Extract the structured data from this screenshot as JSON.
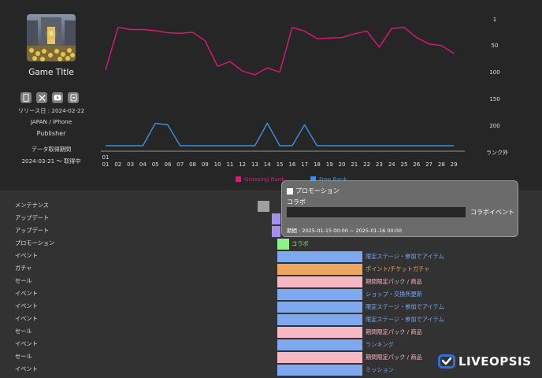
{
  "game": {
    "title": "Game TItle",
    "release": "リリース日 : 2024-02-22",
    "region": "JAPAN / iPhone",
    "publisher": "Publisher",
    "period_label": "データ取得期間",
    "period_value": "2024-03-21 〜 取得中",
    "store_icons": [
      "iphone-icon",
      "x-icon",
      "youtube-icon",
      "android-icon"
    ]
  },
  "chart_data": {
    "type": "line",
    "x_label_first": "01\n01",
    "x": [
      "01",
      "02",
      "03",
      "04",
      "05",
      "06",
      "07",
      "08",
      "09",
      "10",
      "11",
      "12",
      "13",
      "14",
      "15",
      "16",
      "17",
      "18",
      "19",
      "20",
      "21",
      "22",
      "23",
      "24",
      "25",
      "26",
      "27",
      "28",
      "29"
    ],
    "y_ticks": [
      "1",
      "50",
      "100",
      "150",
      "200",
      "ランク外"
    ],
    "series": [
      {
        "name": "Grossing Rank",
        "color": "#e0177a",
        "values": [
          97,
          17,
          21,
          21,
          23,
          27,
          28,
          26,
          42,
          90,
          81,
          99,
          106,
          93,
          101,
          17,
          24,
          38,
          37,
          36,
          29,
          24,
          54,
          19,
          17,
          36,
          48,
          51,
          66
        ]
      },
      {
        "name": "Free Rank",
        "color": "#3f8fe0",
        "values": [
          "ランク外",
          "ランク外",
          "ランク外",
          "ランク外",
          197,
          200,
          "ランク外",
          "ランク外",
          "ランク外",
          "ランク外",
          "ランク外",
          "ランク外",
          "ランク外",
          197,
          "ランク外",
          "ランク外",
          200,
          "ランク外",
          "ランク外",
          "ランク外",
          "ランク外",
          "ランク外",
          "ランク外",
          "ランク外",
          "ランク外",
          "ランク外",
          "ランク外",
          "ランク外",
          "ランク外"
        ]
      }
    ]
  },
  "legend": {
    "grossing": "Grossing Rank",
    "free": "Free Rank"
  },
  "events": [
    {
      "type": "メンテナンス",
      "label": "",
      "color": "#a0a0a0"
    },
    {
      "type": "アップデート",
      "label": "",
      "color": "#a58ef0"
    },
    {
      "type": "アップデート",
      "label": "",
      "color": "#a58ef0"
    },
    {
      "type": "プロモーション",
      "label": "コラボ",
      "color": "#8ef08a",
      "text_color": "#8ef08a"
    },
    {
      "type": "イベント",
      "label": "限定ステージ・参加でアイテム",
      "color": "#7ea9ee",
      "text_color": "#7ea9ee"
    },
    {
      "type": "ガチャ",
      "label": "ポイント/チケットガチャ",
      "color": "#f0a55e",
      "text_color": "#f0a55e"
    },
    {
      "type": "セール",
      "label": "期間限定パック / 商品",
      "color": "#f6b8c4",
      "text_color": "#f6b8c4"
    },
    {
      "type": "イベント",
      "label": "ショップ・交換所更新",
      "color": "#7ea9ee",
      "text_color": "#7ea9ee"
    },
    {
      "type": "イベント",
      "label": "限定ステージ・参加でアイテム",
      "color": "#7ea9ee",
      "text_color": "#7ea9ee"
    },
    {
      "type": "イベント",
      "label": "限定ステージ・参加でアイテム",
      "color": "#7ea9ee",
      "text_color": "#7ea9ee"
    },
    {
      "type": "セール",
      "label": "期間限定パック / 商品",
      "color": "#f6b8c4",
      "text_color": "#f6b8c4"
    },
    {
      "type": "イベント",
      "label": "ランキング",
      "color": "#7ea9ee",
      "text_color": "#7ea9ee"
    },
    {
      "type": "セール",
      "label": "期間限定パック / 商品",
      "color": "#f6b8c4",
      "text_color": "#f6b8c4"
    },
    {
      "type": "イベント",
      "label": "ミッション",
      "color": "#7ea9ee",
      "text_color": "#7ea9ee"
    }
  ],
  "tooltip": {
    "title": "プロモーション",
    "subtitle": "コラボ",
    "bar_label": "コラボイベント",
    "period": "期間 : 2025-01-15 00:00 ~ 2025-01-16 00:00"
  },
  "brand": {
    "name": "LIVEOPSIS",
    "accent": "#2e6fe0"
  }
}
